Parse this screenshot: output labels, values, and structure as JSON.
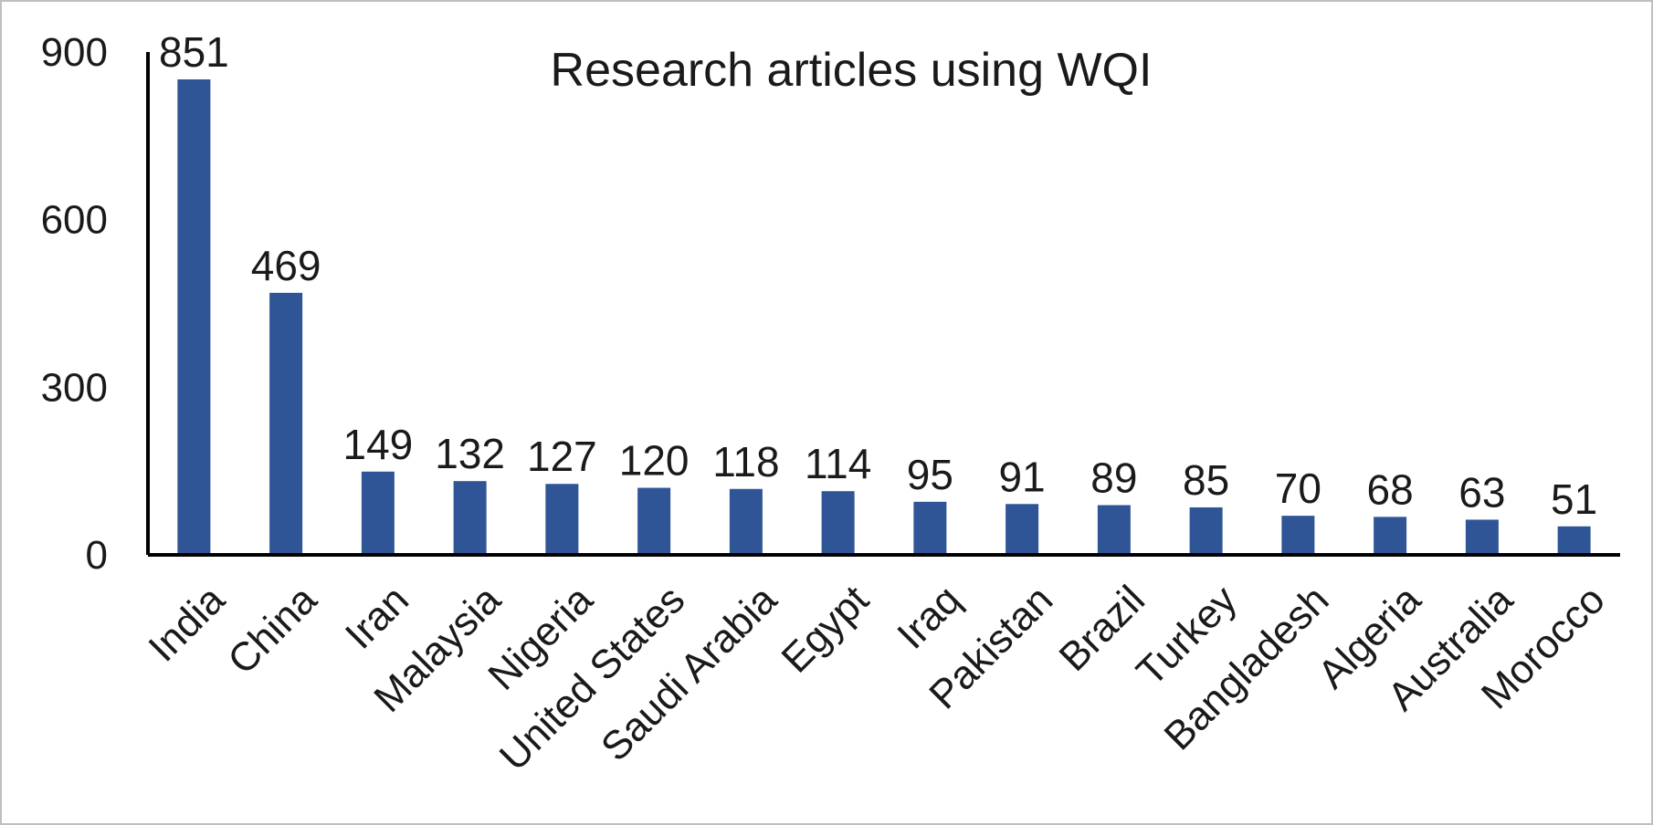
{
  "chart_data": {
    "type": "bar",
    "title": "Research articles using WQI",
    "categories": [
      "India",
      "China",
      "Iran",
      "Malaysia",
      "Nigeria",
      "United States",
      "Saudi Arabia",
      "Egypt",
      "Iraq",
      "Pakistan",
      "Brazil",
      "Turkey",
      "Bangladesh",
      "Algeria",
      "Australia",
      "Morocco"
    ],
    "values": [
      851,
      469,
      149,
      132,
      127,
      120,
      118,
      114,
      95,
      91,
      89,
      85,
      70,
      68,
      63,
      51
    ],
    "data_labels": [
      "851",
      "469",
      "149",
      "132",
      "127",
      "120",
      "118",
      "114",
      "95",
      "91",
      "89",
      "85",
      "70",
      "68",
      "63",
      "51"
    ],
    "yticks": [
      0,
      300,
      600,
      900
    ],
    "ylim": [
      0,
      900
    ],
    "xlabel": "",
    "ylabel": "",
    "grid": false,
    "legend": "none",
    "colors": {
      "bar": "#2f5597",
      "axis": "#000000",
      "text": "#1a1a1a"
    }
  }
}
